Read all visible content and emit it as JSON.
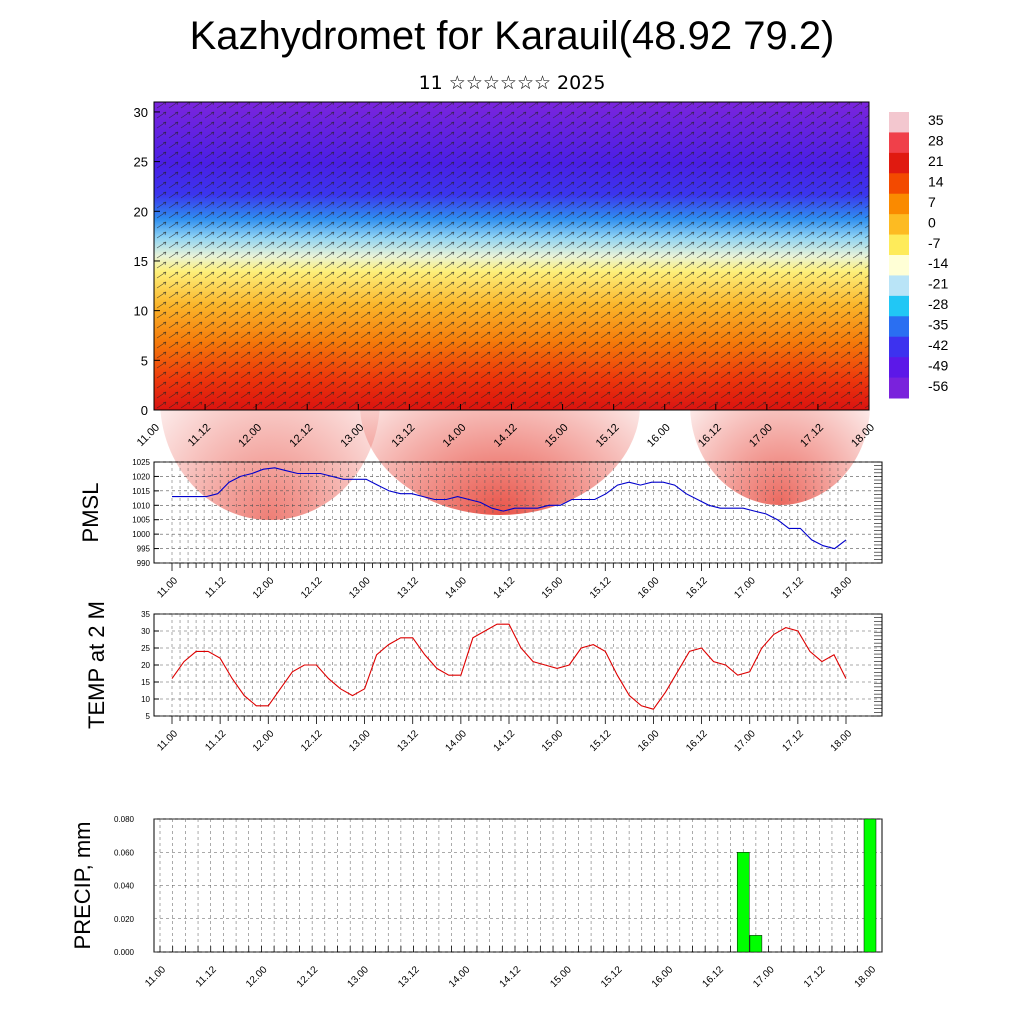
{
  "header": {
    "title": "Kazhydromet for Karauil(48.92 79.2)",
    "subtitle": "11 ☆☆☆☆☆☆ 2025"
  },
  "colors": {
    "pmsl_line": "#0000cc",
    "temp_line": "#dd0000",
    "precip_bar": "#00ff00"
  },
  "chart_data": [
    {
      "type": "heatmap",
      "name": "cross-section",
      "x_tick_labels": [
        "11.00",
        "11.12",
        "12.00",
        "12.12",
        "13.00",
        "13.12",
        "14.00",
        "14.12",
        "15.00",
        "15.12",
        "16.00",
        "16.12",
        "17.00",
        "17.12",
        "18.00"
      ],
      "ylim": [
        0,
        31
      ],
      "y_ticks": [
        0,
        5,
        10,
        15,
        20,
        25,
        30
      ],
      "colorbar": {
        "labels": [
          "35",
          "28",
          "21",
          "14",
          "7",
          "0",
          "-7",
          "-14",
          "-21",
          "-28",
          "-35",
          "-42",
          "-49",
          "-56"
        ],
        "colors": [
          "#f3c7cf",
          "#f0404a",
          "#e01a10",
          "#f34a00",
          "#fa8a00",
          "#fdbb22",
          "#feeb5a",
          "#ffffd6",
          "#b9e4f7",
          "#21c7f5",
          "#2a6ff2",
          "#3d32ef",
          "#5c18e8",
          "#7a22dc"
        ]
      }
    },
    {
      "type": "line",
      "ylabel": "PMSL",
      "ylim": [
        990,
        1025
      ],
      "y_ticks": [
        990,
        995,
        1000,
        1005,
        1010,
        1015,
        1020,
        1025
      ],
      "x_tick_labels": [
        "11.00",
        "11.12",
        "12.00",
        "12.12",
        "13.00",
        "13.12",
        "14.00",
        "14.12",
        "15.00",
        "15.12",
        "16.00",
        "16.12",
        "17.00",
        "17.12",
        "18.00"
      ],
      "series": [
        {
          "values": [
            1013,
            1013,
            1013,
            1013,
            1014,
            1018,
            1020,
            1021,
            1022.5,
            1023,
            1022,
            1021,
            1021,
            1021,
            1020,
            1019,
            1019,
            1019,
            1017,
            1015,
            1014,
            1014,
            1013,
            1012,
            1012,
            1013,
            1012,
            1011,
            1009,
            1008,
            1009,
            1009,
            1009,
            1010,
            1010,
            1012,
            1012,
            1012,
            1014,
            1017,
            1018,
            1017,
            1018,
            1018,
            1017,
            1014,
            1012,
            1010,
            1009,
            1009,
            1009,
            1008,
            1007,
            1005,
            1002,
            1002,
            998,
            996,
            995,
            998
          ]
        }
      ]
    },
    {
      "type": "line",
      "ylabel": "TEMP at 2 M",
      "ylim": [
        5,
        35
      ],
      "y_ticks": [
        5,
        10,
        15,
        20,
        25,
        30,
        35
      ],
      "x_tick_labels": [
        "11.00",
        "11.12",
        "12.00",
        "12.12",
        "13.00",
        "13.12",
        "14.00",
        "14.12",
        "15.00",
        "15.12",
        "16.00",
        "16.12",
        "17.00",
        "17.12",
        "18.00"
      ],
      "series": [
        {
          "values": [
            16,
            21,
            24,
            24,
            22,
            16,
            11,
            8,
            8,
            13,
            18,
            20,
            20,
            16,
            13,
            11,
            13,
            23,
            26,
            28,
            28,
            23,
            19,
            17,
            17,
            28,
            30,
            32,
            32,
            25,
            21,
            20,
            19,
            20,
            25,
            26,
            24,
            17,
            11,
            8,
            7,
            12,
            18,
            24,
            25,
            21,
            20,
            17,
            18,
            25,
            29,
            31,
            30,
            24,
            21,
            23,
            16
          ]
        }
      ]
    },
    {
      "type": "bar",
      "ylabel": "PRECIP, mm",
      "ylim": [
        0,
        0.08
      ],
      "y_ticks": [
        "0.000",
        "0.020",
        "0.040",
        "0.060",
        "0.080"
      ],
      "x_tick_labels": [
        "11.00",
        "11.12",
        "12.00",
        "12.12",
        "13.00",
        "13.12",
        "14.00",
        "14.12",
        "15.00",
        "15.12",
        "16.00",
        "16.12",
        "17.00",
        "17.12",
        "18.00"
      ],
      "bars": [
        {
          "time": "16.18",
          "value": 0.06
        },
        {
          "time": "16.21",
          "value": 0.01
        },
        {
          "time": "18.00",
          "value": 0.08
        }
      ]
    }
  ]
}
